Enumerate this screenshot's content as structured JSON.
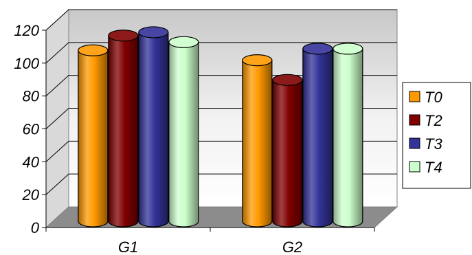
{
  "chart_data": {
    "type": "bar",
    "style": "3d-cylinder",
    "categories": [
      "G1",
      "G2"
    ],
    "series": [
      {
        "name": "T0",
        "values": [
          104,
          98
        ],
        "color": "#FF9900"
      },
      {
        "name": "T2",
        "values": [
          113,
          86
        ],
        "color": "#800000"
      },
      {
        "name": "T3",
        "values": [
          115,
          105
        ],
        "color": "#333399"
      },
      {
        "name": "T4",
        "values": [
          109,
          105
        ],
        "color": "#CCFFCC"
      }
    ],
    "yticks": [
      "0",
      "20",
      "40",
      "60",
      "80",
      "100",
      "120"
    ],
    "ylim": [
      0,
      120
    ],
    "grid": true,
    "legend_position": "right",
    "title": "",
    "xlabel": "",
    "ylabel": ""
  }
}
